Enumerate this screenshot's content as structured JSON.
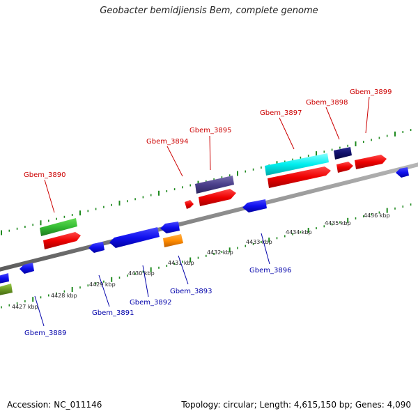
{
  "title": "Geobacter bemidjiensis Bem, complete genome",
  "footer": {
    "accession": "Accession: NC_011146",
    "summary": "Topology: circular; Length: 4,615,150 bp; Genes: 4,090"
  },
  "colors": {
    "backbone": "#8a8a8a",
    "tick": "#1f8a1f",
    "forward_label": "#cc0000",
    "reverse_label": "#0000aa"
  },
  "ticks": [
    "4427 kbp",
    "4428 kbp",
    "4429 kbp",
    "4430 kbp",
    "4431 kbp",
    "4432 kbp",
    "4433 kbp",
    "4434 kbp",
    "4435 kbp",
    "4436 kbp"
  ],
  "forward_labels": [
    "Gbem_3890",
    "Gbem_3894",
    "Gbem_3895",
    "Gbem_3897",
    "Gbem_3898",
    "Gbem_3899"
  ],
  "reverse_labels": [
    "Gbem_3889",
    "Gbem_3891",
    "Gbem_3892",
    "Gbem_3893",
    "Gbem_3896"
  ]
}
